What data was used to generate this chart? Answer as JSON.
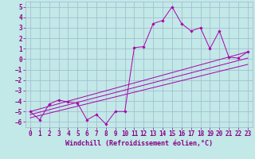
{
  "xlabel": "Windchill (Refroidissement éolien,°C)",
  "bg_color": "#c2e8e8",
  "grid_color": "#a0b8cc",
  "line_color": "#aa00aa",
  "x_ticks": [
    0,
    1,
    2,
    3,
    4,
    5,
    6,
    7,
    8,
    9,
    10,
    11,
    12,
    13,
    14,
    15,
    16,
    17,
    18,
    19,
    20,
    21,
    22,
    23
  ],
  "y_ticks": [
    -6,
    -5,
    -4,
    -3,
    -2,
    -1,
    0,
    1,
    2,
    3,
    4,
    5
  ],
  "xlim": [
    -0.5,
    23.5
  ],
  "ylim": [
    -6.5,
    5.5
  ],
  "series": [
    {
      "x": [
        0,
        1,
        2,
        3,
        4,
        5,
        6,
        7,
        8,
        9,
        10,
        11,
        12,
        13,
        14,
        15,
        16,
        17,
        18,
        19,
        20,
        21,
        22,
        23
      ],
      "y": [
        -5.0,
        -5.8,
        -4.3,
        -3.9,
        -4.1,
        -4.2,
        -5.8,
        -5.3,
        -6.2,
        -5.0,
        -5.0,
        1.1,
        1.2,
        3.4,
        3.7,
        5.0,
        3.4,
        2.7,
        3.0,
        1.0,
        2.7,
        0.2,
        0.1,
        0.7
      ],
      "marker": "D",
      "markersize": 1.8,
      "lw": 0.7
    },
    {
      "x": [
        0,
        23
      ],
      "y": [
        -5.0,
        0.7
      ],
      "lw": 0.7
    },
    {
      "x": [
        0,
        23
      ],
      "y": [
        -5.3,
        0.1
      ],
      "lw": 0.7
    },
    {
      "x": [
        0,
        23
      ],
      "y": [
        -5.6,
        -0.5
      ],
      "lw": 0.7
    }
  ],
  "tick_fontsize": 5.5,
  "xlabel_fontsize": 6.0,
  "tick_color": "#880088",
  "label_color": "#880088"
}
